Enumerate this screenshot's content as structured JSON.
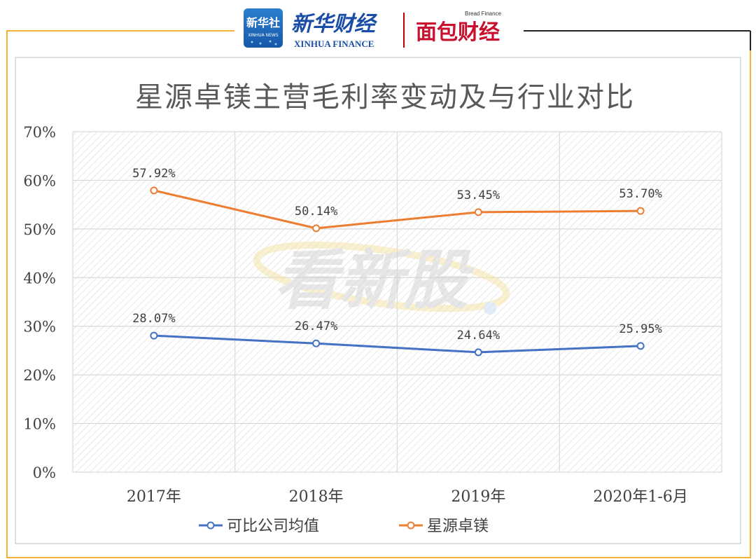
{
  "brand": {
    "xinhua_badge_line1": "新华社",
    "xinhua_badge_line2": "XINHUA NEWS",
    "xinhua_finance_cn": "新华财经",
    "xinhua_finance_en": "XINHUA FINANCE",
    "bread_finance_en": "Bread Finance",
    "bread_finance_cn": "面包财经",
    "watermark": "看新股"
  },
  "chart_data": {
    "type": "line",
    "title": "星源卓镁主营毛利率变动及与行业对比",
    "categories": [
      "2017年",
      "2018年",
      "2019年",
      "2020年1-6月"
    ],
    "y_ticks": [
      "0%",
      "10%",
      "20%",
      "30%",
      "40%",
      "50%",
      "60%",
      "70%"
    ],
    "ylim": [
      0,
      70
    ],
    "grid": true,
    "legend_position": "bottom",
    "series": [
      {
        "name": "可比公司均值",
        "values": [
          28.07,
          26.47,
          24.64,
          25.95
        ],
        "labels": [
          "28.07%",
          "26.47%",
          "24.64%",
          "25.95%"
        ],
        "color": "#4472C4"
      },
      {
        "name": "星源卓镁",
        "values": [
          57.92,
          50.14,
          53.45,
          53.7
        ],
        "labels": [
          "57.92%",
          "50.14%",
          "53.45%",
          "53.70%"
        ],
        "color": "#ED7D31"
      }
    ]
  },
  "colors": {
    "frame": "#F2B233",
    "title": "#595959",
    "axis_text": "#404040",
    "grid": "#D9D9D9"
  }
}
